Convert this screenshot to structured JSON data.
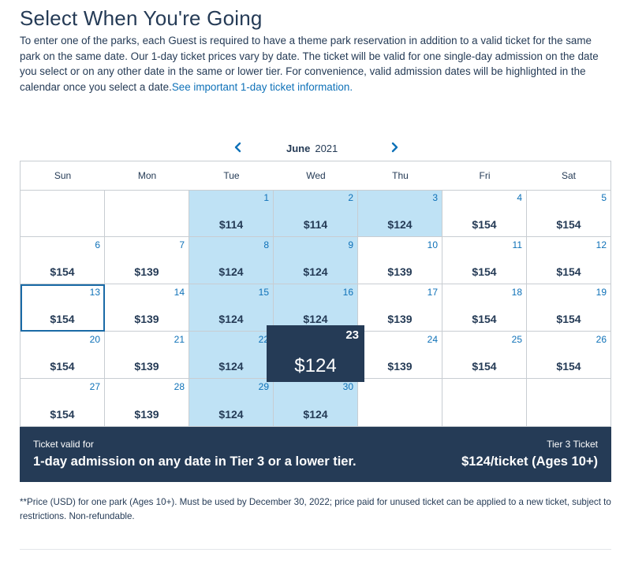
{
  "page": {
    "title": "Select When You're Going",
    "intro": "To enter one of the parks, each Guest is required to have a theme park reservation in addition to a valid ticket for the same park on the same date. Our 1-day ticket prices vary by date. The ticket will be valid for one single-day admission on the date you select or on any other date in the same or lower tier. For convenience, valid admission dates will be highlighted in the calendar once you select a date.",
    "intro_link": "See important 1-day ticket information."
  },
  "calendar": {
    "month": "June",
    "year": "2021",
    "prev_icon": "chevron-left-icon",
    "next_icon": "chevron-right-icon",
    "weekdays": [
      "Sun",
      "Mon",
      "Tue",
      "Wed",
      "Thu",
      "Fri",
      "Sat"
    ],
    "colors": {
      "eligible": "#bfe2f5",
      "selected": "#253b56",
      "day_number": "#0e71b8",
      "text": "#253b56"
    },
    "weeks": [
      [
        {
          "day": "",
          "price": "",
          "eligible": false
        },
        {
          "day": "",
          "price": "",
          "eligible": false
        },
        {
          "day": "1",
          "price": "$114",
          "eligible": true
        },
        {
          "day": "2",
          "price": "$114",
          "eligible": true
        },
        {
          "day": "3",
          "price": "$124",
          "eligible": true
        },
        {
          "day": "4",
          "price": "$154",
          "eligible": false
        },
        {
          "day": "5",
          "price": "$154",
          "eligible": false
        }
      ],
      [
        {
          "day": "6",
          "price": "$154",
          "eligible": false
        },
        {
          "day": "7",
          "price": "$139",
          "eligible": false
        },
        {
          "day": "8",
          "price": "$124",
          "eligible": true
        },
        {
          "day": "9",
          "price": "$124",
          "eligible": true
        },
        {
          "day": "10",
          "price": "$139",
          "eligible": false
        },
        {
          "day": "11",
          "price": "$154",
          "eligible": false
        },
        {
          "day": "12",
          "price": "$154",
          "eligible": false
        }
      ],
      [
        {
          "day": "13",
          "price": "$154",
          "eligible": false,
          "outlined": true
        },
        {
          "day": "14",
          "price": "$139",
          "eligible": false
        },
        {
          "day": "15",
          "price": "$124",
          "eligible": true
        },
        {
          "day": "16",
          "price": "$124",
          "eligible": true
        },
        {
          "day": "17",
          "price": "$139",
          "eligible": false
        },
        {
          "day": "18",
          "price": "$154",
          "eligible": false
        },
        {
          "day": "19",
          "price": "$154",
          "eligible": false
        }
      ],
      [
        {
          "day": "20",
          "price": "$154",
          "eligible": false
        },
        {
          "day": "21",
          "price": "$139",
          "eligible": false
        },
        {
          "day": "22",
          "price": "$124",
          "eligible": true
        },
        {
          "day": "23",
          "price": "$124",
          "eligible": true,
          "selected": true
        },
        {
          "day": "24",
          "price": "$139",
          "eligible": false
        },
        {
          "day": "25",
          "price": "$154",
          "eligible": false
        },
        {
          "day": "26",
          "price": "$154",
          "eligible": false
        }
      ],
      [
        {
          "day": "27",
          "price": "$154",
          "eligible": false
        },
        {
          "day": "28",
          "price": "$139",
          "eligible": false
        },
        {
          "day": "29",
          "price": "$124",
          "eligible": true
        },
        {
          "day": "30",
          "price": "$124",
          "eligible": true
        },
        {
          "day": "",
          "price": "",
          "eligible": false
        },
        {
          "day": "",
          "price": "",
          "eligible": false
        },
        {
          "day": "",
          "price": "",
          "eligible": false
        }
      ]
    ],
    "selected": {
      "day": "23",
      "price": "$124"
    }
  },
  "banner": {
    "left_small": "Ticket valid for",
    "left_big": "1-day admission on any date in Tier 3 or a lower tier.",
    "right_small": "Tier 3 Ticket",
    "right_big": "$124/ticket (Ages 10+)",
    "background": "#253b56"
  },
  "footnote": "**Price (USD) for one park (Ages 10+). Must be used by December 30, 2022; price paid for unused ticket can be applied to a new ticket, subject to restrictions. Non-refundable."
}
